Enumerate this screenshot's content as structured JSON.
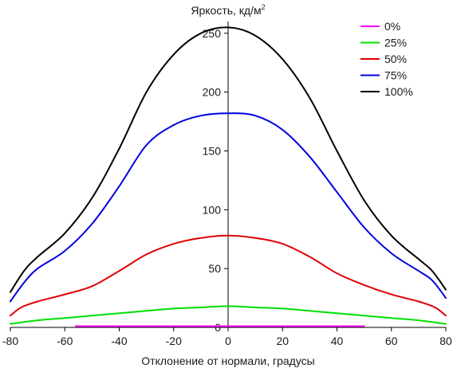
{
  "chart_data": {
    "type": "line",
    "title": "",
    "ylabel": "Яркость, кд/м",
    "ylabel_sup": "2",
    "xlabel": "Отклонение от нормали, градусы",
    "xlim": [
      -80,
      80
    ],
    "ylim": [
      0,
      260
    ],
    "xticks": [
      "-80",
      "-60",
      "-40",
      "-20",
      "0",
      "20",
      "40",
      "60",
      "80"
    ],
    "yticks": [
      "0",
      "50",
      "100",
      "150",
      "200",
      "250"
    ],
    "legend_position": "top-right",
    "grid": false,
    "series": [
      {
        "name": "0%",
        "color": "#ff00ff",
        "points": [
          [
            -56,
            1
          ],
          [
            -40,
            1
          ],
          [
            -20,
            1
          ],
          [
            0,
            1
          ],
          [
            20,
            1
          ],
          [
            40,
            1
          ],
          [
            50,
            1
          ]
        ]
      },
      {
        "name": "25%",
        "color": "#00e000",
        "points": [
          [
            -80,
            3
          ],
          [
            -70,
            6
          ],
          [
            -60,
            8
          ],
          [
            -50,
            10
          ],
          [
            -40,
            12
          ],
          [
            -30,
            14
          ],
          [
            -20,
            16
          ],
          [
            -10,
            17
          ],
          [
            0,
            18
          ],
          [
            10,
            17
          ],
          [
            20,
            16
          ],
          [
            30,
            14
          ],
          [
            40,
            12
          ],
          [
            50,
            10
          ],
          [
            60,
            8
          ],
          [
            70,
            6
          ],
          [
            80,
            3
          ]
        ]
      },
      {
        "name": "50%",
        "color": "#e00000",
        "points": [
          [
            -80,
            10
          ],
          [
            -76,
            17
          ],
          [
            -70,
            22
          ],
          [
            -60,
            28
          ],
          [
            -50,
            35
          ],
          [
            -40,
            48
          ],
          [
            -30,
            62
          ],
          [
            -20,
            71
          ],
          [
            -10,
            76
          ],
          [
            0,
            78
          ],
          [
            10,
            76
          ],
          [
            20,
            71
          ],
          [
            30,
            60
          ],
          [
            40,
            46
          ],
          [
            50,
            36
          ],
          [
            60,
            28
          ],
          [
            70,
            22
          ],
          [
            76,
            17
          ],
          [
            80,
            10
          ]
        ]
      },
      {
        "name": "75%",
        "color": "#0000e0",
        "points": [
          [
            -80,
            22
          ],
          [
            -75,
            38
          ],
          [
            -70,
            50
          ],
          [
            -60,
            65
          ],
          [
            -50,
            88
          ],
          [
            -40,
            120
          ],
          [
            -30,
            155
          ],
          [
            -20,
            172
          ],
          [
            -10,
            180
          ],
          [
            0,
            182
          ],
          [
            10,
            180
          ],
          [
            20,
            168
          ],
          [
            30,
            145
          ],
          [
            40,
            115
          ],
          [
            50,
            85
          ],
          [
            60,
            63
          ],
          [
            70,
            48
          ],
          [
            75,
            40
          ],
          [
            80,
            25
          ]
        ]
      },
      {
        "name": "100%",
        "color": "#000000",
        "points": [
          [
            -80,
            30
          ],
          [
            -75,
            48
          ],
          [
            -70,
            60
          ],
          [
            -60,
            80
          ],
          [
            -50,
            110
          ],
          [
            -40,
            152
          ],
          [
            -30,
            200
          ],
          [
            -20,
            232
          ],
          [
            -10,
            250
          ],
          [
            0,
            255
          ],
          [
            10,
            248
          ],
          [
            20,
            228
          ],
          [
            30,
            195
          ],
          [
            40,
            150
          ],
          [
            50,
            108
          ],
          [
            60,
            78
          ],
          [
            70,
            58
          ],
          [
            75,
            48
          ],
          [
            80,
            32
          ]
        ]
      }
    ]
  }
}
